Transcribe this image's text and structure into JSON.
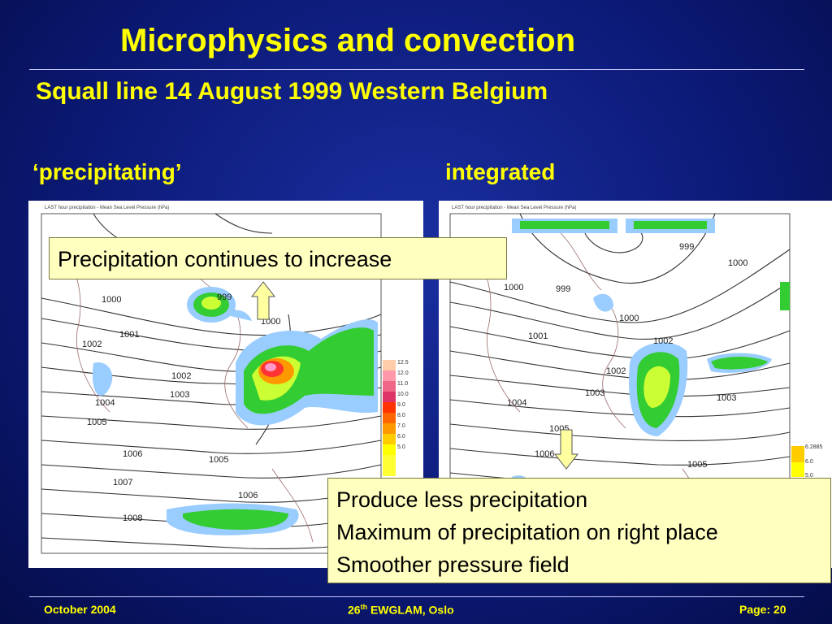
{
  "title": "Microphysics and convection",
  "subtitle": "Squall line  14 August 1999 Western Belgium",
  "panels": {
    "left": {
      "label": "‘precipitating’",
      "map_header": "LAST hour precipitation  -      Mean Sea Level Pressure (hPa)",
      "isobar_labels": [
        "999",
        "1000",
        "1001",
        "1002",
        "1002",
        "1003",
        "1004",
        "1005",
        "1006",
        "1005",
        "1006",
        "1007",
        "1008",
        "1000"
      ],
      "scale_labels": [
        "12.5",
        "12.0",
        "11.0",
        "10.0",
        "9.0",
        "8.0",
        "7.0",
        "6.0",
        "5.0"
      ]
    },
    "right": {
      "label": "integrated",
      "map_header": "LAST hour precipitation  -      Mean Sea Level Pressure (hPa)",
      "isobar_labels": [
        "999",
        "1000",
        "999",
        "1000",
        "1001",
        "1000",
        "1002",
        "1002",
        "1003",
        "1003",
        "1004",
        "1005",
        "1006",
        "1005"
      ],
      "scale_labels": [
        "6.2885",
        "6.0",
        "5.0"
      ]
    }
  },
  "callouts": {
    "top": "Precipitation continues to increase",
    "bottom": [
      "Produce less precipitation",
      "Maximum of precipitation on right place",
      "Smoother pressure field"
    ]
  },
  "footer": {
    "date": "October 2004",
    "event_prefix": "26",
    "event_sup": "th",
    "event_suffix": " EWGLAM, Oslo",
    "page": "Page: 20"
  }
}
